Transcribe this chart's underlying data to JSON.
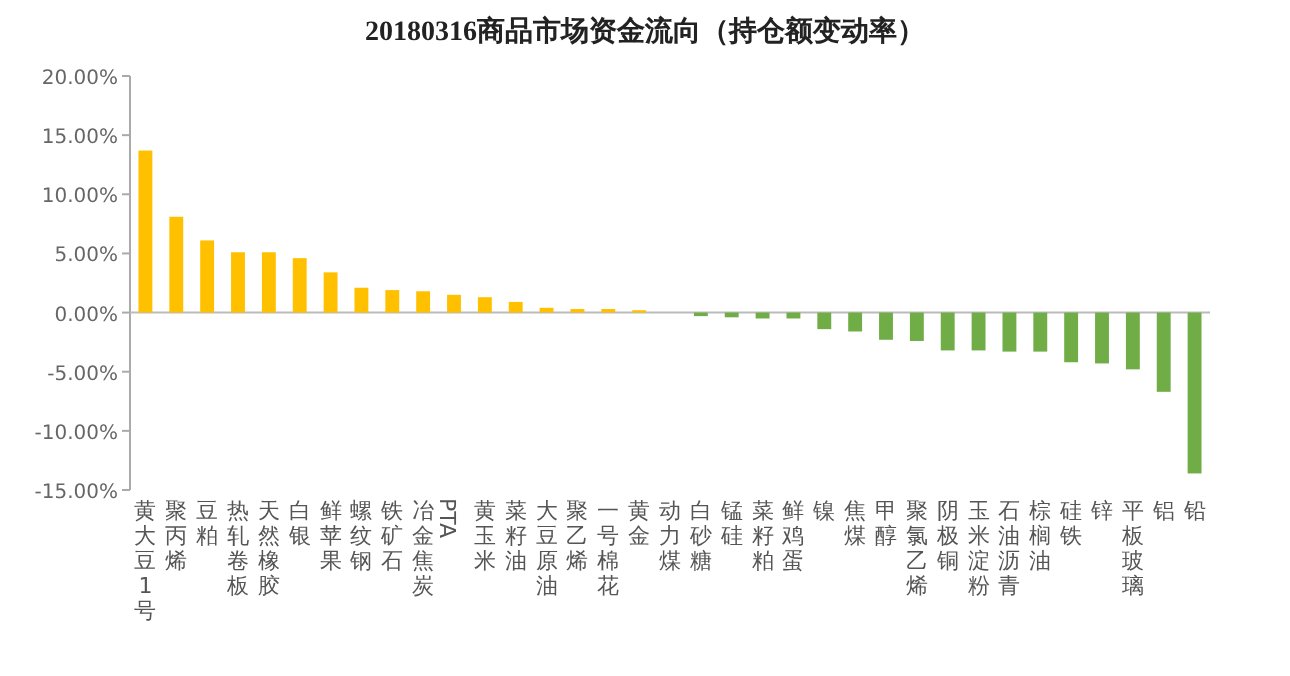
{
  "chart_data": {
    "type": "bar",
    "title": "20180316商品市场资金流向（持仓额变动率）",
    "categories": [
      "黄大豆1号",
      "聚丙烯",
      "豆粕",
      "热轧卷板",
      "天然橡胶",
      "白银",
      "鲜苹果",
      "螺纹钢",
      "铁矿石",
      "冶金焦炭",
      "PTA",
      "黄玉米",
      "菜籽油",
      "大豆原油",
      "聚乙烯",
      "一号棉花",
      "黄金",
      "动力煤",
      "白砂糖",
      "锰硅",
      "菜籽粕",
      "鲜鸡蛋",
      "镍",
      "焦煤",
      "甲醇",
      "聚氯乙烯",
      "阴极铜",
      "玉米淀粉",
      "石油沥青",
      "棕榈油",
      "硅铁",
      "锌",
      "平板玻璃",
      "铝",
      "铅"
    ],
    "values": [
      13.7,
      8.1,
      6.1,
      5.1,
      5.1,
      4.6,
      3.4,
      2.1,
      1.9,
      1.8,
      1.5,
      1.3,
      0.9,
      0.4,
      0.3,
      0.3,
      0.2,
      0,
      -0.3,
      -0.4,
      -0.5,
      -0.5,
      -1.4,
      -1.6,
      -2.3,
      -2.4,
      -3.2,
      -3.2,
      -3.3,
      -3.3,
      -4.2,
      -4.3,
      -4.8,
      -6.7,
      -13.6
    ],
    "colors": [
      "#ffc000",
      "#ffc000",
      "#ffc000",
      "#ffc000",
      "#ffc000",
      "#ffc000",
      "#ffc000",
      "#ffc000",
      "#ffc000",
      "#ffc000",
      "#ffc000",
      "#ffc000",
      "#ffc000",
      "#ffc000",
      "#ffc000",
      "#ffc000",
      "#ffc000",
      "#ffc000",
      "#70ad47",
      "#70ad47",
      "#70ad47",
      "#70ad47",
      "#70ad47",
      "#70ad47",
      "#70ad47",
      "#70ad47",
      "#70ad47",
      "#70ad47",
      "#70ad47",
      "#70ad47",
      "#70ad47",
      "#70ad47",
      "#70ad47",
      "#70ad47",
      "#70ad47"
    ],
    "ylim": [
      -15,
      20
    ],
    "yticks": [
      {
        "value": 20,
        "label": "20.00%"
      },
      {
        "value": 15,
        "label": "15.00%"
      },
      {
        "value": 10,
        "label": "10.00%"
      },
      {
        "value": 5,
        "label": "5.00%"
      },
      {
        "value": 0,
        "label": "0.00%"
      },
      {
        "value": -5,
        "label": "-5.00%"
      },
      {
        "value": -10,
        "label": "-10.00%"
      },
      {
        "value": -15,
        "label": "-15.00%"
      }
    ]
  }
}
